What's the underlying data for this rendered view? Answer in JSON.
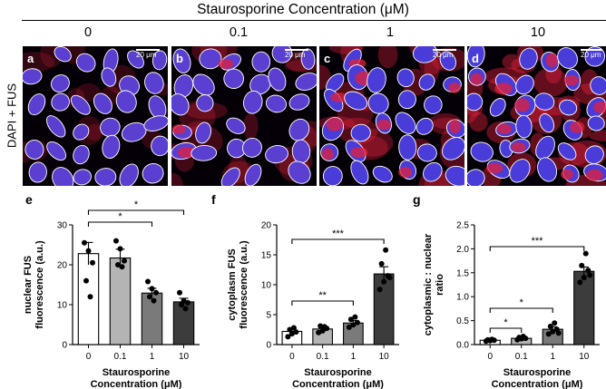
{
  "figure": {
    "title": "Staurosporine Concentration (μM)",
    "row_label": "DAPI + FUS",
    "concentrations": [
      "0",
      "0.1",
      "1",
      "10"
    ],
    "panels": [
      {
        "letter": "a",
        "scale": "20 μm",
        "fus_level": 0.25
      },
      {
        "letter": "b",
        "scale": "20 μm",
        "fus_level": 0.45
      },
      {
        "letter": "c",
        "scale": "20 μm",
        "fus_level": 0.65
      },
      {
        "letter": "d",
        "scale": "20 μm",
        "fus_level": 0.9
      }
    ],
    "colors": {
      "dapi": "#3a3ae0",
      "fus": "#e0203a",
      "outline": "#ffffff",
      "bar_fill": [
        "#ffffff",
        "#b4b4b4",
        "#7a7a7a",
        "#3c3c3c"
      ]
    }
  },
  "chart_data": [
    {
      "letter": "e",
      "type": "bar",
      "categories": [
        "0",
        "0.1",
        "1",
        "10"
      ],
      "values": [
        22.8,
        21.7,
        12.9,
        10.7
      ],
      "errors": [
        2.8,
        2.2,
        1.2,
        0.9
      ],
      "points": [
        [
          25.5,
          23.5,
          20.5,
          16,
          12
        ],
        [
          26,
          24,
          21,
          20,
          19.5
        ],
        [
          15.8,
          14,
          13,
          12,
          11
        ],
        [
          13,
          11,
          10.5,
          10,
          9
        ]
      ],
      "ylabel": "nuclear FUS\nfluorescence (a.u.)",
      "xlabel": "Staurosporine\nConcentration (μM)",
      "ylim": [
        0,
        30
      ],
      "yticks": [
        "0",
        "10",
        "20",
        "30"
      ],
      "significance": [
        {
          "from": "0",
          "to": "1",
          "label": "*"
        },
        {
          "from": "0",
          "to": "10",
          "label": "*"
        }
      ]
    },
    {
      "letter": "f",
      "type": "bar",
      "categories": [
        "0",
        "0.1",
        "1",
        "10"
      ],
      "values": [
        2.2,
        2.6,
        3.6,
        11.8
      ],
      "errors": [
        0.5,
        0.4,
        0.4,
        1.2
      ],
      "points": [
        [
          1.3,
          1.8,
          2.1,
          2.5,
          2.8
        ],
        [
          2.0,
          2.3,
          2.7,
          3.1,
          3.0
        ],
        [
          2.9,
          3.3,
          3.7,
          4.2,
          4.6
        ],
        [
          9.2,
          10.5,
          11.5,
          13.5,
          15.8,
          11.2
        ]
      ],
      "ylabel": "cytoplasm FUS\nfluorescence (a.u.)",
      "xlabel": "Staurosporine\nConcentration (μM)",
      "ylim": [
        0,
        20
      ],
      "yticks": [
        "0",
        "5",
        "10",
        "15",
        "20"
      ],
      "significance": [
        {
          "from": "0",
          "to": "1",
          "label": "**"
        },
        {
          "from": "0",
          "to": "10",
          "label": "***"
        }
      ]
    },
    {
      "letter": "g",
      "type": "bar",
      "categories": [
        "0",
        "0.1",
        "1",
        "10"
      ],
      "values": [
        0.09,
        0.13,
        0.32,
        1.53
      ],
      "errors": [
        0.01,
        0.02,
        0.05,
        0.09
      ],
      "points": [
        [
          0.07,
          0.08,
          0.09,
          0.1,
          0.11
        ],
        [
          0.1,
          0.12,
          0.13,
          0.15,
          0.17
        ],
        [
          0.22,
          0.27,
          0.32,
          0.38,
          0.45,
          0.24
        ],
        [
          1.3,
          1.4,
          1.55,
          1.65,
          1.9,
          1.45
        ]
      ],
      "ylabel": "cytoplasmic : nuclear\nratio",
      "xlabel": "Staurosporine\nConcentration (μM)",
      "ylim": [
        0,
        2.5
      ],
      "yticks": [
        "0.0",
        "0.5",
        "1.0",
        "1.5",
        "2.0",
        "2.5"
      ],
      "significance": [
        {
          "from": "0",
          "to": "0.1",
          "label": "*"
        },
        {
          "from": "0",
          "to": "1",
          "label": "*"
        },
        {
          "from": "0",
          "to": "10",
          "label": "***"
        }
      ]
    }
  ]
}
